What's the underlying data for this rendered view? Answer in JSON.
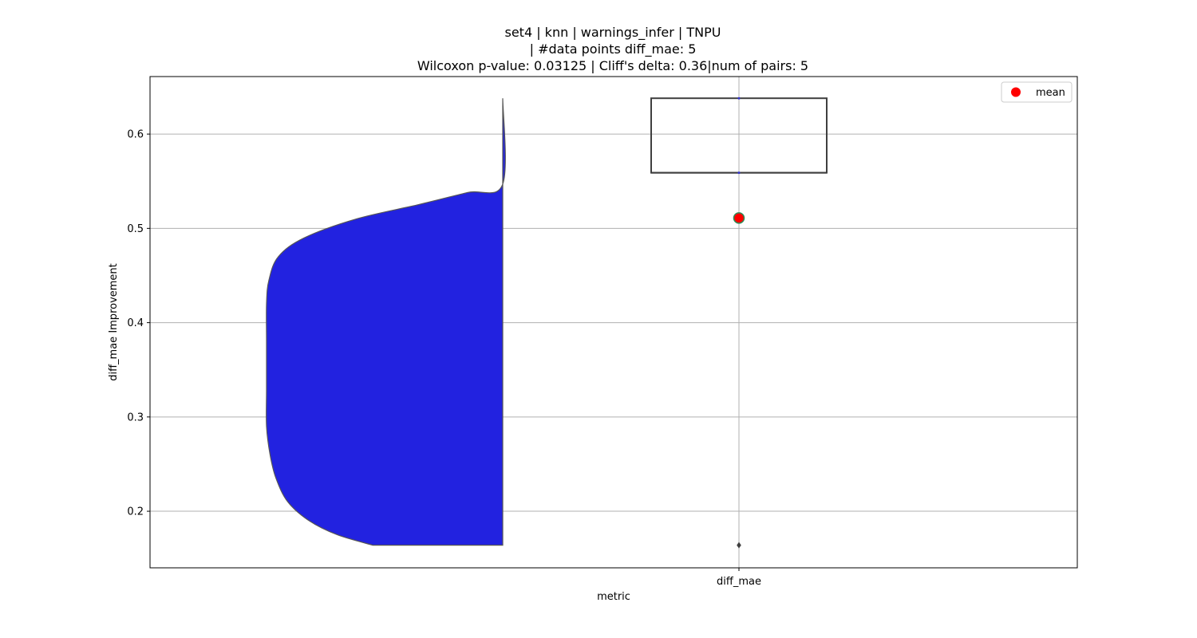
{
  "chart_data": {
    "type": "violin",
    "title_lines": [
      "set4 | knn | warnings_infer | TNPU",
      "| #data points diff_mae: 5",
      "Wilcoxon p-value: 0.03125 | Cliff's delta: 0.36|num of pairs: 5"
    ],
    "xlabel": "metric",
    "ylabel": "diff_mae Improvement",
    "categories": [
      "diff_mae"
    ],
    "ylim": [
      0.14,
      0.661
    ],
    "yticks": [
      0.2,
      0.3,
      0.4,
      0.5,
      0.6
    ],
    "ytick_labels": [
      "0.2",
      "0.3",
      "0.4",
      "0.5",
      "0.6"
    ],
    "grid": true,
    "violin": {
      "color": "#2222e0",
      "edge_color": "#555555",
      "side": "left",
      "min": 0.164,
      "max": 0.638,
      "density_profile": [
        [
          0.164,
          0.55
        ],
        [
          0.175,
          0.7
        ],
        [
          0.19,
          0.82
        ],
        [
          0.21,
          0.91
        ],
        [
          0.235,
          0.96
        ],
        [
          0.26,
          0.985
        ],
        [
          0.29,
          1.0
        ],
        [
          0.33,
          1.0
        ],
        [
          0.38,
          1.0
        ],
        [
          0.42,
          1.0
        ],
        [
          0.445,
          0.99
        ],
        [
          0.47,
          0.95
        ],
        [
          0.49,
          0.84
        ],
        [
          0.51,
          0.62
        ],
        [
          0.525,
          0.36
        ],
        [
          0.538,
          0.15
        ],
        [
          0.547,
          0.0
        ],
        [
          0.638,
          0.0
        ]
      ]
    },
    "box": {
      "q1": 0.559,
      "median": 0.559,
      "q3": 0.638,
      "whisker_low": 0.559,
      "whisker_high": 0.638,
      "outliers": [
        0.164
      ]
    },
    "mean": 0.511,
    "mean_color": "#ff0000",
    "mean_edge_color": "#2e8b57",
    "legend": {
      "label": "mean",
      "placement": "top-right"
    }
  }
}
